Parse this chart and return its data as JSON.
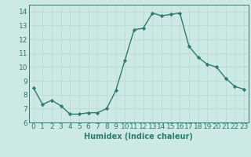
{
  "x": [
    0,
    1,
    2,
    3,
    4,
    5,
    6,
    7,
    8,
    9,
    10,
    11,
    12,
    13,
    14,
    15,
    16,
    17,
    18,
    19,
    20,
    21,
    22,
    23
  ],
  "y": [
    8.5,
    7.3,
    7.6,
    7.2,
    6.6,
    6.6,
    6.7,
    6.7,
    7.0,
    8.3,
    10.5,
    12.7,
    12.8,
    13.9,
    13.7,
    13.8,
    13.9,
    11.5,
    10.7,
    10.2,
    10.0,
    9.2,
    8.6,
    8.4
  ],
  "line_color": "#2d7d6f",
  "marker": "D",
  "marker_size": 2.2,
  "bg_color": "#cce9e5",
  "grid_color": "#b8d8d4",
  "xlabel": "Humidex (Indice chaleur)",
  "xlim": [
    -0.5,
    23.5
  ],
  "ylim": [
    6,
    14.5
  ],
  "yticks": [
    6,
    7,
    8,
    9,
    10,
    11,
    12,
    13,
    14
  ],
  "xticks": [
    0,
    1,
    2,
    3,
    4,
    5,
    6,
    7,
    8,
    9,
    10,
    11,
    12,
    13,
    14,
    15,
    16,
    17,
    18,
    19,
    20,
    21,
    22,
    23
  ],
  "xlabel_fontsize": 7,
  "tick_fontsize": 6.5,
  "line_width": 1.0
}
